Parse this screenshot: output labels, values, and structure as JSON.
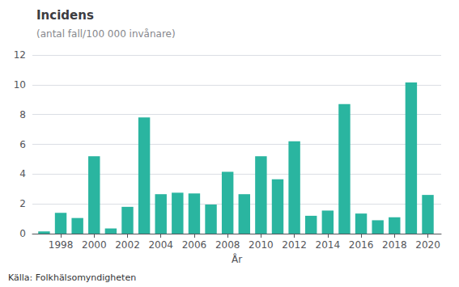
{
  "chart_data": {
    "type": "bar",
    "title": "Incidens",
    "subtitle": "(antal fall/100 000 invånare)",
    "xlabel": "År",
    "source": "Källa: Folkhälsomyndigheten",
    "x": [
      1997,
      1998,
      1999,
      2000,
      2001,
      2002,
      2003,
      2004,
      2005,
      2006,
      2007,
      2008,
      2009,
      2010,
      2011,
      2012,
      2013,
      2014,
      2015,
      2016,
      2017,
      2018,
      2019,
      2020
    ],
    "values": [
      0.15,
      1.4,
      1.05,
      5.2,
      0.35,
      1.8,
      7.8,
      2.65,
      2.75,
      2.7,
      1.95,
      4.15,
      2.65,
      5.2,
      3.65,
      6.2,
      1.2,
      1.55,
      8.7,
      1.35,
      0.9,
      1.1,
      10.15,
      2.6
    ],
    "color": "#2ab5a0",
    "xlim": [
      1996.3,
      2020.8
    ],
    "xticks": [
      1998,
      2000,
      2002,
      2004,
      2006,
      2008,
      2010,
      2012,
      2014,
      2016,
      2018,
      2020
    ],
    "ylim": [
      0,
      12
    ],
    "yticks": [
      0,
      2,
      4,
      6,
      8,
      10,
      12
    ],
    "grid": true
  }
}
